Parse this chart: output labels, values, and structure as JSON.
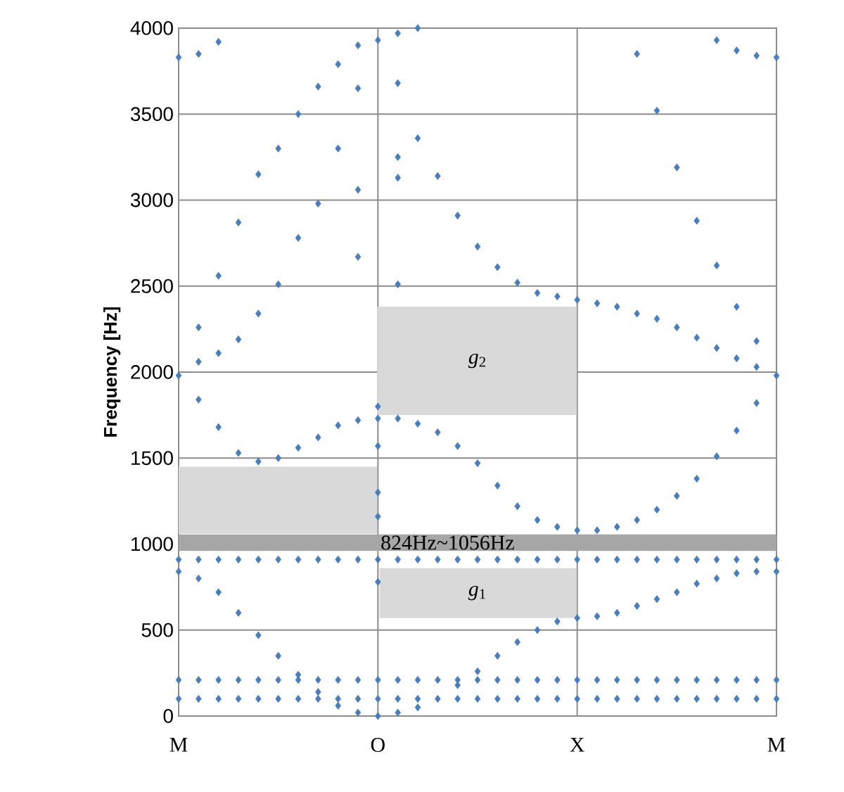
{
  "chart_data": {
    "type": "scatter",
    "ylabel": "Frequency [Hz]",
    "categories": [
      "M",
      null,
      null,
      null,
      null,
      null,
      null,
      null,
      null,
      null,
      "O",
      null,
      null,
      null,
      null,
      null,
      null,
      null,
      null,
      null,
      "X",
      null,
      null,
      null,
      null,
      null,
      null,
      null,
      null,
      null,
      "M"
    ],
    "ylim": [
      0,
      4000
    ],
    "yticks": [
      0,
      500,
      1000,
      1500,
      2000,
      2500,
      3000,
      3500,
      4000
    ],
    "grid": true,
    "marker": "diamond",
    "bands": [
      {
        "axis": "y",
        "from": 960,
        "to": 1056,
        "label": "824Hz~1056Hz",
        "color": "#a6a6a6"
      },
      {
        "axis": "y",
        "from": 1060,
        "to": 1450,
        "color": "#d9d9d9"
      },
      {
        "axis": "y",
        "from": 1750,
        "to": 2380,
        "label": "*g*$_{2}$",
        "color": "#d9d9d9"
      },
      {
        "axis": "y",
        "from": 570,
        "to": 860,
        "label": "*g*$_{1}$",
        "color": "#d9d9d9"
      }
    ],
    "series": [
      {
        "color": "#4a7ebb",
        "values": [
          100,
          100,
          100,
          100,
          100,
          100,
          100,
          100,
          100,
          100,
          100,
          100,
          100,
          100,
          100,
          100,
          100,
          100,
          100,
          100,
          100,
          100,
          100,
          100,
          100,
          100,
          100,
          100,
          100,
          100,
          100
        ]
      },
      {
        "color": "#4a7ebb",
        "values": [
          210,
          210,
          210,
          210,
          210,
          210,
          210,
          210,
          210,
          210,
          210,
          210,
          210,
          210,
          210,
          210,
          210,
          210,
          210,
          210,
          210,
          210,
          210,
          210,
          210,
          210,
          210,
          210,
          210,
          210,
          210
        ]
      },
      {
        "color": "#4a7ebb",
        "values": [
          910,
          910,
          910,
          910,
          910,
          910,
          910,
          910,
          910,
          910,
          910,
          910,
          910,
          910,
          910,
          910,
          910,
          910,
          910,
          910,
          910,
          910,
          910,
          910,
          910,
          910,
          910,
          910,
          910,
          910,
          910
        ]
      },
      {
        "color": "#4a7ebb",
        "values": [
          840,
          800,
          720,
          600,
          470,
          350,
          240,
          140,
          60,
          20,
          0,
          20,
          50,
          null,
          180,
          260,
          350,
          430,
          500,
          550,
          570,
          580,
          600,
          640,
          680,
          720,
          770,
          800,
          830,
          840,
          840
        ]
      },
      {
        "color": "#4a7ebb",
        "values": [
          1980,
          1840,
          1680,
          1530,
          1480,
          1500,
          1560,
          1620,
          1690,
          1720,
          1730,
          1730,
          1700,
          1650,
          1570,
          1470,
          1340,
          1220,
          1140,
          1100,
          1080,
          1080,
          1100,
          1140,
          1200,
          1280,
          1380,
          1510,
          1660,
          1820,
          1980
        ]
      },
      {
        "color": "#4a7ebb",
        "values": [
          null,
          2260,
          2560,
          2870,
          3150,
          3300,
          3500,
          3660,
          3790,
          3900,
          null,
          null,
          null,
          null,
          null,
          null,
          null,
          null,
          null,
          null,
          null,
          null,
          null,
          null,
          null,
          null,
          null,
          null,
          null,
          null,
          null
        ]
      },
      {
        "color": "#4a7ebb",
        "values": [
          null,
          2060,
          2110,
          2190,
          2340,
          2510,
          2780,
          2980,
          3300,
          3650,
          3930,
          null,
          null,
          null,
          null,
          null,
          null,
          null,
          null,
          null,
          null,
          null,
          null,
          null,
          null,
          null,
          null,
          null,
          null,
          null,
          null
        ]
      },
      {
        "color": "#4a7ebb",
        "values": [
          3830,
          3850,
          3920,
          null,
          null,
          null,
          null,
          null,
          null,
          null,
          null,
          null,
          null,
          null,
          null,
          null,
          null,
          null,
          null,
          null,
          null,
          null,
          null,
          null,
          null,
          null,
          null,
          null,
          null,
          null,
          null
        ]
      },
      {
        "color": "#4a7ebb",
        "values": [
          null,
          null,
          null,
          null,
          null,
          null,
          null,
          null,
          null,
          null,
          null,
          3680,
          3360,
          3140,
          2910,
          2730,
          2610,
          2520,
          2460,
          2440,
          2420,
          2400,
          2380,
          2340,
          2310,
          2260,
          2200,
          2140,
          2080,
          2030,
          null
        ]
      },
      {
        "color": "#4a7ebb",
        "values": [
          null,
          null,
          null,
          null,
          null,
          null,
          null,
          null,
          null,
          null,
          null,
          3970,
          4000,
          null,
          null,
          null,
          null,
          null,
          null,
          null,
          null,
          null,
          null,
          null,
          null,
          null,
          null,
          null,
          null,
          null,
          null
        ]
      },
      {
        "color": "#4a7ebb",
        "values": [
          null,
          null,
          null,
          null,
          null,
          null,
          null,
          null,
          null,
          null,
          null,
          null,
          null,
          null,
          null,
          null,
          null,
          null,
          null,
          null,
          null,
          null,
          null,
          3850,
          3520,
          3190,
          2880,
          2620,
          2380,
          2180,
          null
        ]
      },
      {
        "color": "#4a7ebb",
        "values": [
          null,
          null,
          null,
          null,
          null,
          null,
          null,
          null,
          null,
          null,
          null,
          null,
          null,
          null,
          null,
          null,
          null,
          null,
          null,
          null,
          null,
          null,
          null,
          null,
          null,
          null,
          null,
          3930,
          3870,
          3840,
          3830
        ]
      },
      {
        "color": "#4a7ebb",
        "values": [
          null,
          null,
          null,
          null,
          null,
          null,
          null,
          null,
          null,
          3060,
          1800,
          2510,
          null,
          null,
          null,
          null,
          null,
          null,
          null,
          null,
          null,
          null,
          null,
          null,
          null,
          null,
          null,
          null,
          null,
          null,
          null
        ]
      },
      {
        "color": "#4a7ebb",
        "values": [
          null,
          null,
          null,
          null,
          null,
          null,
          null,
          null,
          null,
          2670,
          1570,
          3250,
          null,
          null,
          null,
          null,
          null,
          null,
          null,
          null,
          null,
          null,
          null,
          null,
          null,
          null,
          null,
          null,
          null,
          null,
          null
        ]
      },
      {
        "color": "#4a7ebb",
        "values": [
          null,
          null,
          null,
          null,
          null,
          null,
          null,
          null,
          null,
          null,
          780,
          3130,
          null,
          null,
          null,
          null,
          null,
          null,
          null,
          null,
          null,
          null,
          null,
          null,
          null,
          null,
          null,
          null,
          null,
          null,
          null
        ]
      },
      {
        "color": "#4a7ebb",
        "values": [
          null,
          null,
          null,
          null,
          null,
          null,
          null,
          null,
          null,
          null,
          1300,
          null,
          null,
          null,
          null,
          null,
          null,
          null,
          null,
          null,
          null,
          null,
          null,
          null,
          null,
          null,
          null,
          null,
          null,
          null,
          null
        ]
      },
      {
        "color": "#4a7ebb",
        "values": [
          null,
          null,
          null,
          null,
          null,
          null,
          null,
          null,
          null,
          null,
          1160,
          null,
          null,
          null,
          null,
          null,
          null,
          null,
          null,
          null,
          null,
          null,
          null,
          null,
          null,
          null,
          null,
          null,
          null,
          null,
          null
        ]
      }
    ]
  }
}
